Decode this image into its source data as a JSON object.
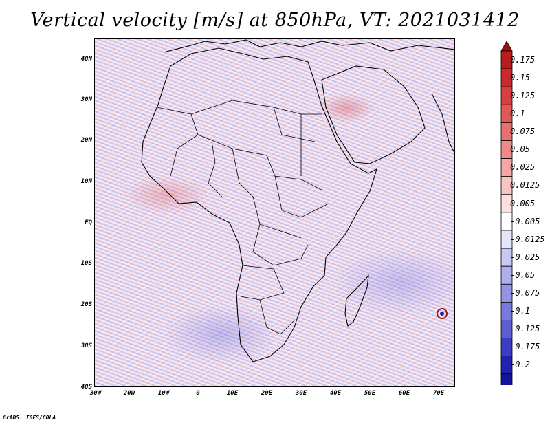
{
  "title": "Vertical velocity [m/s] at 850hPa, VT: 2021031412",
  "lat_ticks": [
    "40N",
    "30N",
    "20N",
    "10N",
    "EQ",
    "10S",
    "20S",
    "30S",
    "40S"
  ],
  "lon_ticks": [
    "30W",
    "20W",
    "10W",
    "0",
    "10E",
    "20E",
    "30E",
    "40E",
    "50E",
    "60E",
    "70E"
  ],
  "colorbar": {
    "labels": [
      "0.175",
      "0.15",
      "0.125",
      "0.1",
      "0.075",
      "0.05",
      "0.025",
      "0.0125",
      "0.005",
      "-0.005",
      "-0.0125",
      "-0.025",
      "-0.05",
      "-0.075",
      "-0.1",
      "-0.125",
      "-0.175",
      "-0.2"
    ],
    "colors": [
      "#b81c1c",
      "#cc2a2a",
      "#d84040",
      "#e05858",
      "#e87070",
      "#ee8a8a",
      "#f4a6a6",
      "#f8c4c4",
      "#fce0e0",
      "#ffffff",
      "#e4e4fa",
      "#c8c8f4",
      "#aeaeee",
      "#9494e6",
      "#7a7ade",
      "#5e5ed2",
      "#3c3cc4",
      "#2222b0",
      "#1414a0"
    ],
    "top_arrow_color": "#a01010",
    "bottom_arrow_color": "#1a1aa0"
  },
  "footer": "GrADS: IGES/COLA"
}
